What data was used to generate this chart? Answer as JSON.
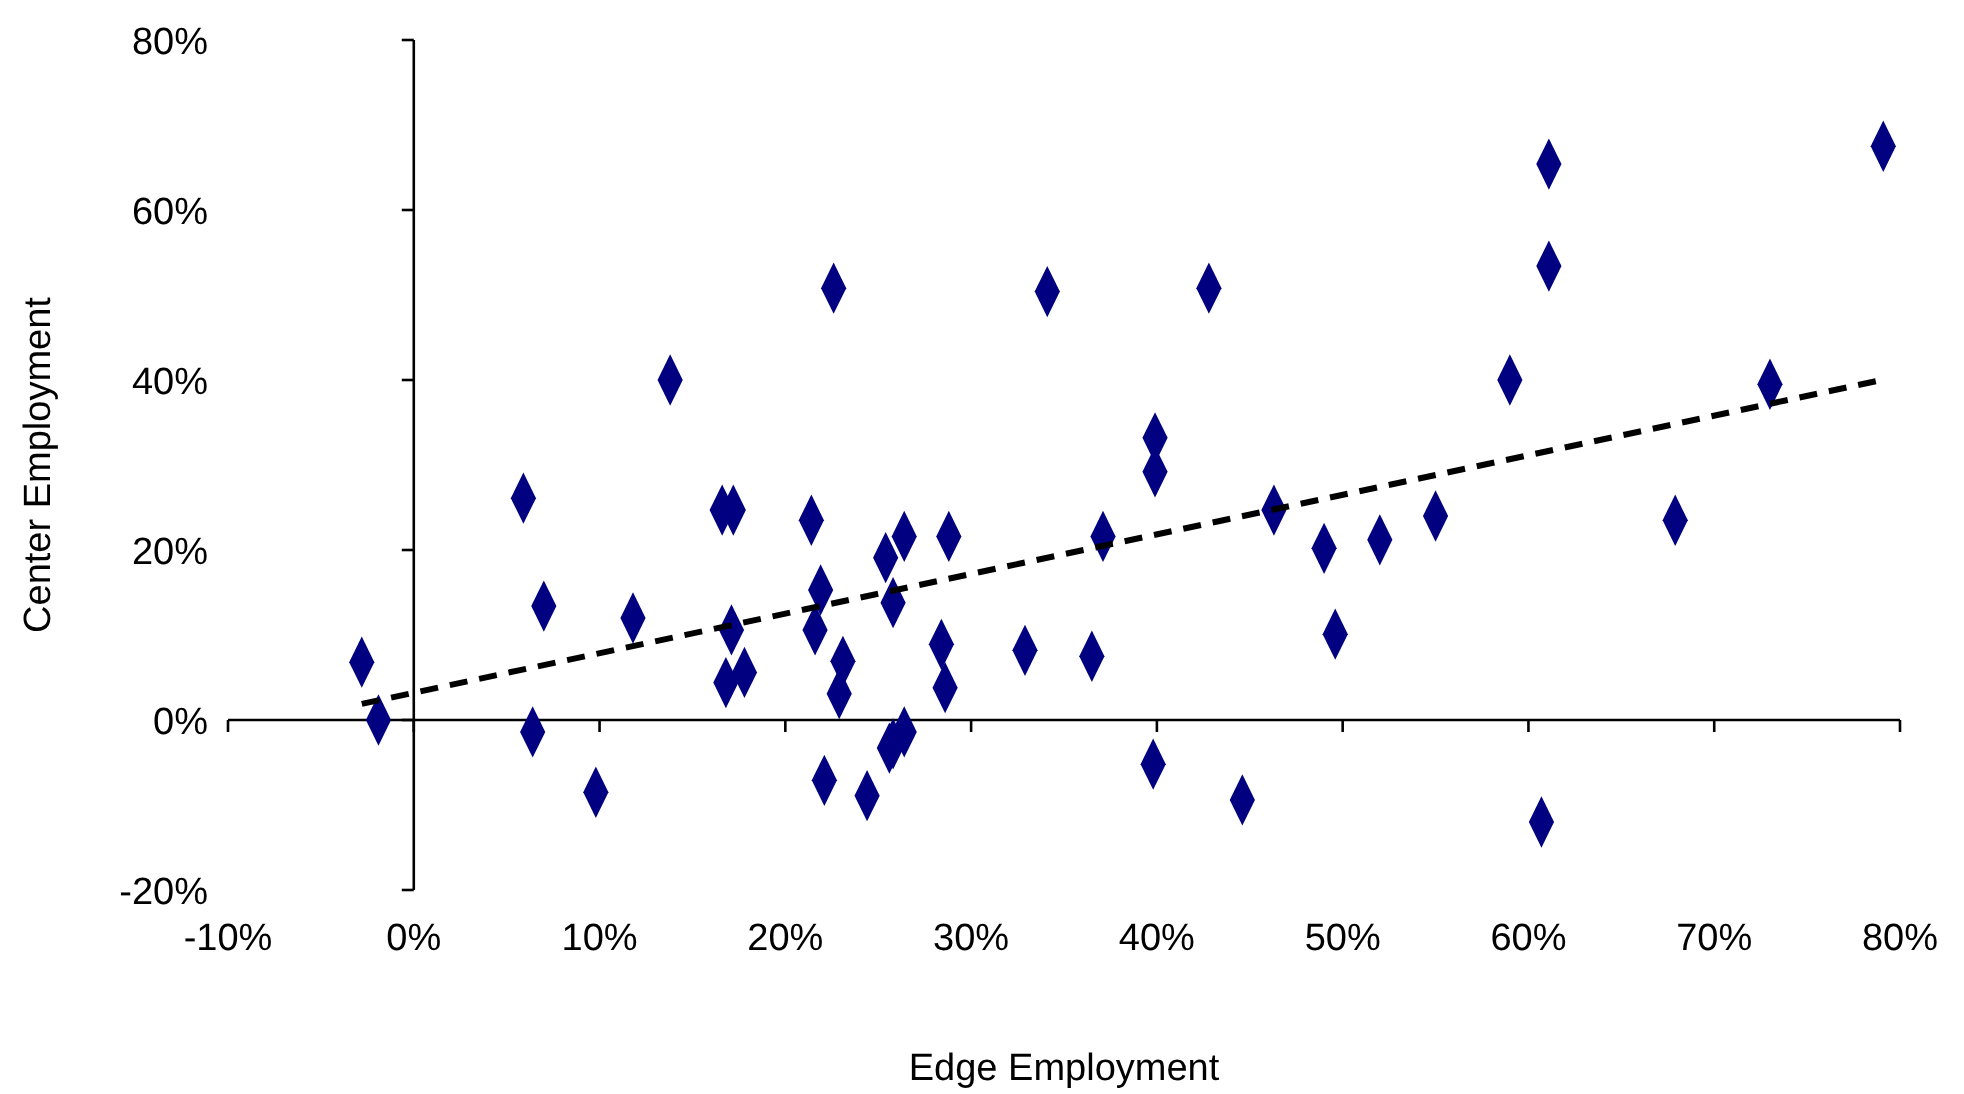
{
  "chart_data": {
    "type": "scatter",
    "xlabel": "Edge Employment",
    "ylabel": "Center Employment",
    "xlim": [
      -10,
      80
    ],
    "ylim": [
      -20,
      80
    ],
    "xticks": [
      {
        "value": -10,
        "label": "-10%"
      },
      {
        "value": 0,
        "label": "0%"
      },
      {
        "value": 10,
        "label": "10%"
      },
      {
        "value": 20,
        "label": "20%"
      },
      {
        "value": 30,
        "label": "30%"
      },
      {
        "value": 40,
        "label": "40%"
      },
      {
        "value": 50,
        "label": "50%"
      },
      {
        "value": 60,
        "label": "60%"
      },
      {
        "value": 70,
        "label": "70%"
      },
      {
        "value": 80,
        "label": "80%"
      }
    ],
    "yticks": [
      {
        "value": -20,
        "label": "-20%"
      },
      {
        "value": 0,
        "label": "0%"
      },
      {
        "value": 20,
        "label": "20%"
      },
      {
        "value": 40,
        "label": "40%"
      },
      {
        "value": 60,
        "label": "60%"
      },
      {
        "value": 80,
        "label": "80%"
      }
    ],
    "marker": "diamond",
    "series": [
      {
        "color": "#000080",
        "x": [
          -2.8,
          -1.9,
          5.9,
          7.0,
          6.4,
          9.8,
          11.8,
          13.8,
          16.6,
          17.2,
          17.1,
          16.8,
          17.8,
          21.4,
          21.9,
          21.6,
          22.6,
          23.1,
          22.9,
          22.1,
          24.4,
          25.4,
          26.4,
          25.8,
          28.4,
          28.6,
          28.8,
          25.6,
          25.8,
          26.4,
          32.9,
          34.1,
          36.5,
          37.1,
          39.8,
          39.9,
          39.9,
          42.8,
          44.6,
          46.3,
          49.0,
          49.6,
          52.0,
          55.0,
          59.0,
          60.7,
          61.1,
          61.1,
          67.9,
          73.0,
          79.1
        ],
        "values": [
          6.8,
          0,
          26.1,
          13.4,
          -1.4,
          -8.5,
          12.0,
          40.0,
          24.7,
          24.7,
          10.6,
          4.4,
          5.6,
          23.5,
          15.3,
          10.6,
          50.8,
          6.9,
          3.1,
          -7.1,
          -8.9,
          19.1,
          21.6,
          13.8,
          8.9,
          3.8,
          21.6,
          -3.3,
          -2.8,
          -1.4,
          8.2,
          50.4,
          7.5,
          21.6,
          -5.2,
          33.2,
          29.2,
          50.8,
          -9.4,
          24.7,
          20.2,
          10.1,
          21.2,
          24.0,
          40.0,
          -12.0,
          65.4,
          53.4,
          23.5,
          39.5,
          67.5
        ]
      },
      {
        "type": "line",
        "color": "#000000",
        "marker": "none",
        "line_style": "dashed",
        "x": [
          -2.8,
          79.0
        ],
        "values": [
          1.9,
          40.0
        ]
      }
    ]
  }
}
